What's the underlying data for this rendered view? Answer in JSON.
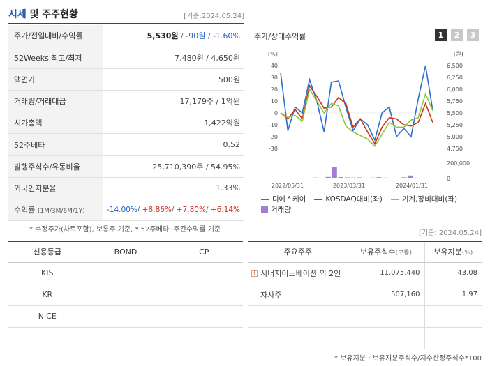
{
  "header": {
    "title_hl": "시세",
    "title_rest": " 및 주주현황",
    "date": "[기준:2024.05.24]"
  },
  "info": {
    "rows": [
      {
        "label": "주가/전일대비/수익률"
      },
      {
        "label": "52Weeks 최고/최저",
        "value": "7,480원 / 4,650원"
      },
      {
        "label": "액면가",
        "value": "500원"
      },
      {
        "label": "거래량/거래대금",
        "value": "17,179주 / 1억원"
      },
      {
        "label": "시가총액",
        "value": "1,422억원"
      },
      {
        "label": "52주베타",
        "value": "0.52"
      },
      {
        "label": "발행주식수/유동비율",
        "value": "25,710,390주 / 54.95%"
      },
      {
        "label": "외국인지분율",
        "value": "1.33%"
      },
      {
        "label": "수익률",
        "label_small": "(1M/3M/6M/1Y)"
      }
    ],
    "price": "5,530원",
    "change": "-90원",
    "change_pct": "-1.60%",
    "returns": [
      "-14.00%",
      "+8.86%",
      "+7.80%",
      "+6.14%"
    ],
    "note": "* 수정주가(차트포함), 보통주 기준, * 52주베타: 주간수익률 기준"
  },
  "chart_panel": {
    "title": "주가/상대수익률",
    "tabs": [
      "1",
      "2",
      "3"
    ],
    "legend": [
      {
        "name": "디에스케이",
        "color": "#2a6fcf"
      },
      {
        "name": "KOSDAQ대비(좌)",
        "color": "#cc3311"
      },
      {
        "name": "기계,장비대비(좌)",
        "color": "#8bc53f"
      },
      {
        "name": "거래량",
        "color": "#a57bd8"
      }
    ]
  },
  "chart_data": {
    "type": "line",
    "left_axis": {
      "unit": "[%]",
      "ticks": [
        40,
        30,
        20,
        10,
        0,
        -10,
        -20,
        -30
      ],
      "range": [
        -30,
        40
      ]
    },
    "right_axis": {
      "unit": "[원]",
      "ticks": [
        "6,500",
        "6,250",
        "6,000",
        "5,750",
        "5,500",
        "5,250",
        "5,000",
        "4,750"
      ],
      "range": [
        4750,
        6500
      ]
    },
    "volume_axis": {
      "ticks": [
        "200,000",
        "0"
      ],
      "range": [
        0,
        200000
      ]
    },
    "x_labels": [
      "2022/05/31",
      "2023/03/31",
      "2024/01/31"
    ],
    "series": [
      {
        "name": "디에스케이",
        "axis": "left",
        "values": [
          34,
          -15,
          5,
          0,
          28,
          10,
          -16,
          26,
          27,
          5,
          -15,
          -5,
          -10,
          -23,
          0,
          5,
          -20,
          -13,
          -20,
          12,
          40,
          2
        ]
      },
      {
        "name": "KOSDAQ대비(좌)",
        "axis": "left",
        "values": [
          0,
          -5,
          3,
          -5,
          23,
          14,
          4,
          5,
          13,
          8,
          -12,
          -5,
          -16,
          -26,
          -12,
          -4,
          -5,
          -10,
          -11,
          -8,
          8,
          -8
        ]
      },
      {
        "name": "기계,장비대비(좌)",
        "axis": "left",
        "values": [
          0,
          -4,
          -2,
          -7,
          20,
          10,
          0,
          8,
          6,
          -11,
          -16,
          -19,
          -22,
          -28,
          -18,
          -8,
          -12,
          -12,
          -6,
          -4,
          16,
          2
        ]
      }
    ],
    "volume": [
      3000,
      2500,
      5000,
      3000,
      6000,
      12000,
      9000,
      20000,
      150000,
      18000,
      14000,
      12000,
      14000,
      9000,
      11000,
      16000,
      11000,
      9000,
      7000,
      15000,
      38000,
      10000,
      7000,
      6000
    ]
  },
  "credit": {
    "headers": [
      "신용등급",
      "BOND",
      "CP"
    ],
    "rows": [
      [
        "KIS",
        "",
        ""
      ],
      [
        "KR",
        "",
        ""
      ],
      [
        "NICE",
        "",
        ""
      ],
      [
        "",
        "",
        ""
      ]
    ]
  },
  "holders": {
    "headers": {
      "main": "주요주주",
      "shares": "보유주식수",
      "shares_unit": "(보통)",
      "pct": "보유지분",
      "pct_unit": "(%)"
    },
    "rows": [
      {
        "name": "시너지이노베이션 외 2인",
        "shares": "11,075,440",
        "pct": "43.08"
      },
      {
        "name": "자사주",
        "shares": "507,160",
        "pct": "1.97"
      },
      {
        "name": "",
        "shares": "",
        "pct": ""
      },
      {
        "name": "",
        "shares": "",
        "pct": ""
      }
    ],
    "date": "[기준: 2024.05.24]",
    "note": "* 보유지분 : 보유지분주식수/지수산정주식수*100"
  }
}
